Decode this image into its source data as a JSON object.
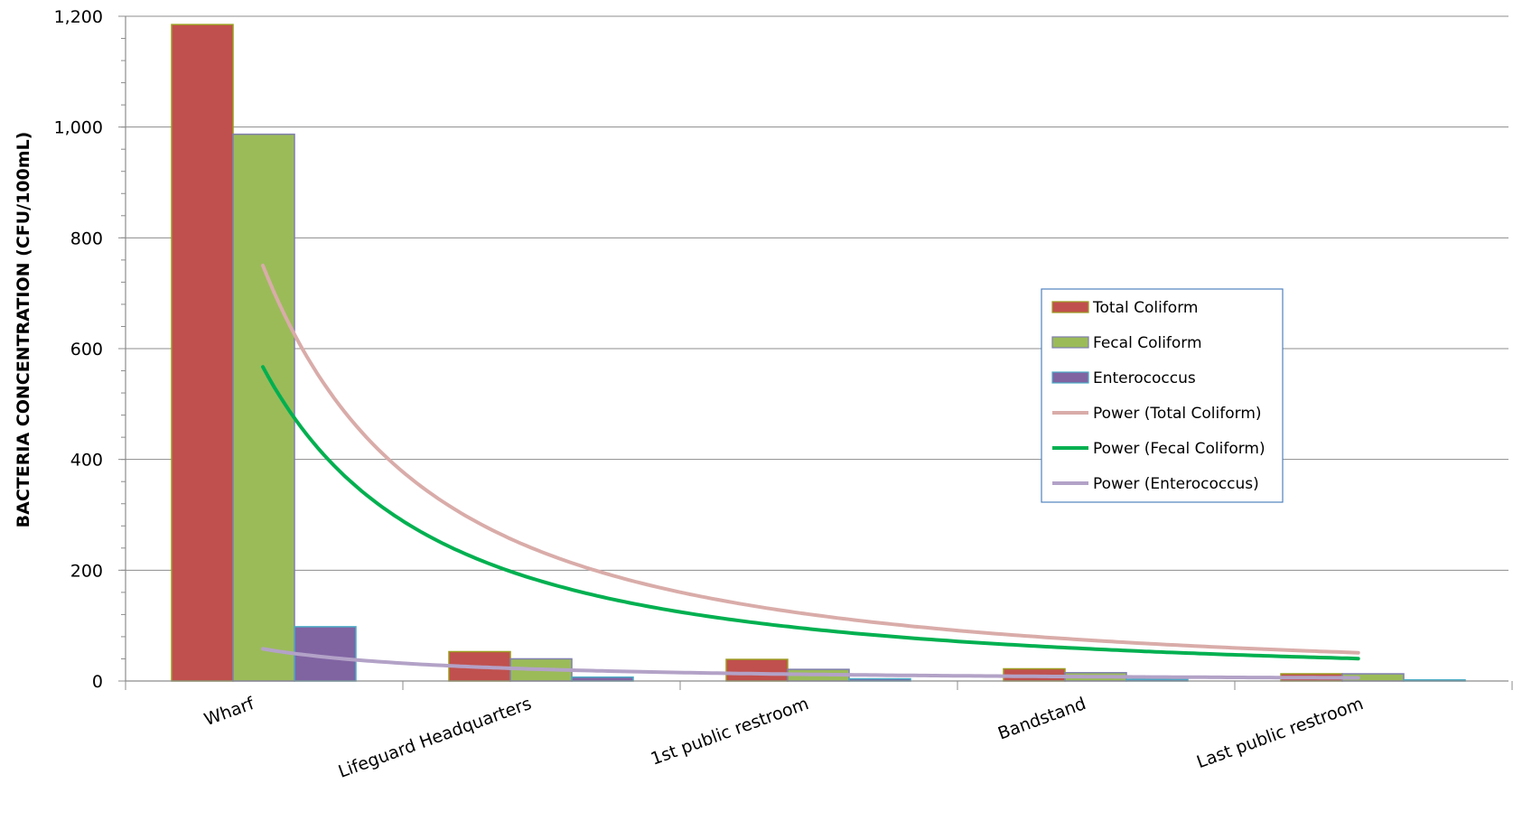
{
  "chart_data": {
    "type": "bar",
    "title": "",
    "xlabel": "",
    "ylabel": "BACTERIA CONCENTRATION (CFU/100mL)",
    "ylim": [
      0,
      1200
    ],
    "yticks": [
      0,
      200,
      400,
      600,
      800,
      1000,
      1200
    ],
    "ytick_labels": [
      "0",
      "200",
      "400",
      "600",
      "800",
      "1,000",
      "1,200"
    ],
    "grid": true,
    "legend_position": "right",
    "categories": [
      "Wharf",
      "Lifeguard Headquarters",
      "1st public restroom",
      "Bandstand",
      "Last public restroom"
    ],
    "series": [
      {
        "name": "Total Coliform",
        "values": [
          1185,
          53,
          39,
          22,
          13
        ],
        "color": "#c0504d",
        "edge": "#9c9c20"
      },
      {
        "name": "Fecal Coliform",
        "values": [
          987,
          40,
          21,
          15,
          13
        ],
        "color": "#9bbb59",
        "edge": "#7f7faf"
      },
      {
        "name": "Enterococcus",
        "values": [
          98,
          7,
          4,
          3,
          2
        ],
        "color": "#8064a2",
        "edge": "#4aacc6"
      }
    ],
    "trendlines": [
      {
        "name": "Power (Total Coliform)",
        "type": "power",
        "a": 750,
        "b": -1.68,
        "color": "#d9aca9",
        "width": 4
      },
      {
        "name": "Power (Fecal Coliform)",
        "type": "power",
        "a": 567,
        "b": -1.65,
        "color": "#00b050",
        "width": 4
      },
      {
        "name": "Power (Enterococcus)",
        "type": "power",
        "a": 58,
        "b": -1.45,
        "color": "#b3a2c7",
        "width": 4
      }
    ]
  }
}
